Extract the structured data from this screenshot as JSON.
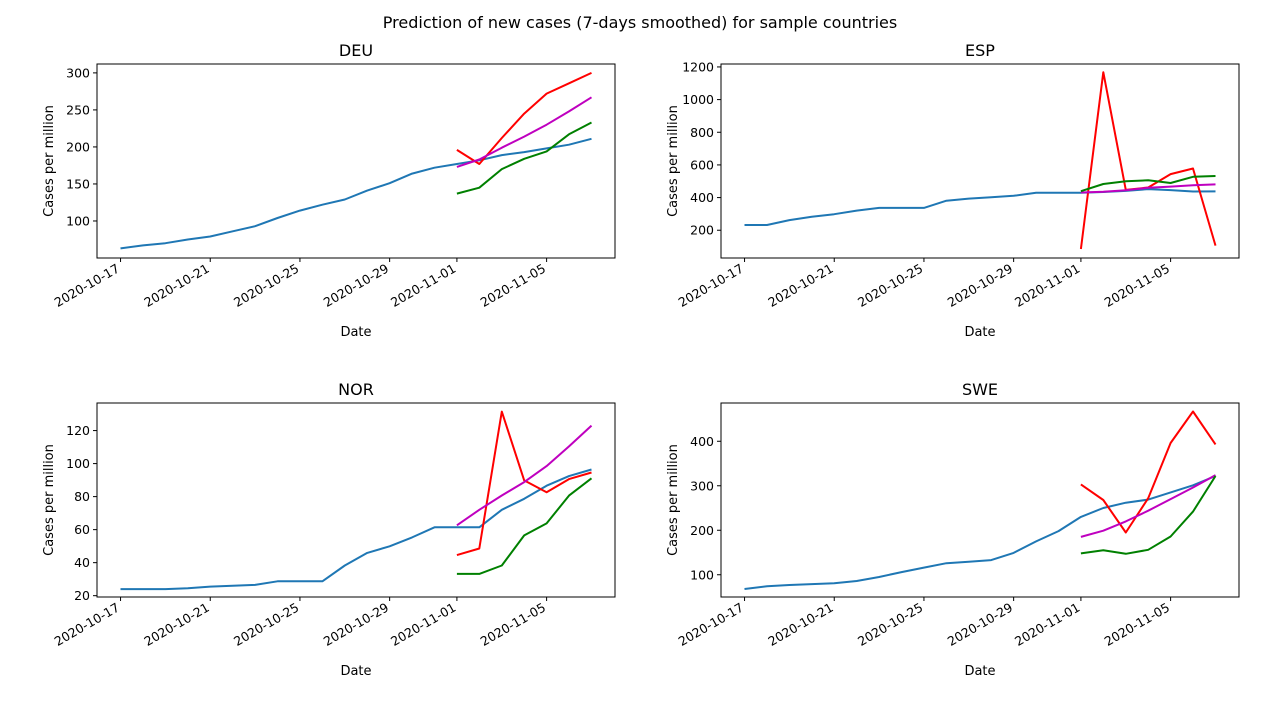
{
  "figure": {
    "suptitle": "Prediction of new cases (7-days smoothed) for sample countries"
  },
  "chart_data": [
    {
      "type": "line",
      "title": "DEU",
      "xlabel": "Date",
      "ylabel": "Cases per million",
      "xlim": [
        "2020-10-17",
        "2020-11-07"
      ],
      "ylim": [
        50,
        312
      ],
      "x_ticks": [
        "2020-10-17",
        "2020-10-21",
        "2020-10-25",
        "2020-10-29",
        "2020-11-01",
        "2020-11-05"
      ],
      "y_ticks": [
        100,
        150,
        200,
        250,
        300
      ],
      "series": [
        {
          "color": "#1f77b4",
          "x": [
            "2020-10-17",
            "2020-10-18",
            "2020-10-19",
            "2020-10-20",
            "2020-10-21",
            "2020-10-22",
            "2020-10-23",
            "2020-10-24",
            "2020-10-25",
            "2020-10-26",
            "2020-10-27",
            "2020-10-28",
            "2020-10-29",
            "2020-10-30",
            "2020-10-31",
            "2020-11-01",
            "2020-11-02",
            "2020-11-03",
            "2020-11-04",
            "2020-11-05",
            "2020-11-06",
            "2020-11-07"
          ],
          "y": [
            63,
            67,
            70,
            75,
            79,
            86,
            93,
            104,
            114,
            122,
            129,
            141,
            151,
            164,
            172,
            177,
            182,
            189,
            193,
            198,
            203,
            211
          ]
        },
        {
          "color": "#ff0000",
          "x": [
            "2020-11-01",
            "2020-11-02",
            "2020-11-03",
            "2020-11-04",
            "2020-11-05",
            "2020-11-06",
            "2020-11-07"
          ],
          "y": [
            196,
            177,
            212,
            245,
            272,
            286,
            300
          ]
        },
        {
          "color": "#bf00bf",
          "x": [
            "2020-11-01",
            "2020-11-02",
            "2020-11-03",
            "2020-11-04",
            "2020-11-05",
            "2020-11-06",
            "2020-11-07"
          ],
          "y": [
            173,
            183,
            199,
            214,
            230,
            248,
            267
          ]
        },
        {
          "color": "#008000",
          "x": [
            "2020-11-01",
            "2020-11-02",
            "2020-11-03",
            "2020-11-04",
            "2020-11-05",
            "2020-11-06",
            "2020-11-07"
          ],
          "y": [
            137,
            145,
            170,
            184,
            194,
            217,
            233
          ]
        }
      ]
    },
    {
      "type": "line",
      "title": "ESP",
      "xlabel": "Date",
      "ylabel": "Cases per million",
      "xlim": [
        "2020-10-17",
        "2020-11-07"
      ],
      "ylim": [
        30,
        1218
      ],
      "x_ticks": [
        "2020-10-17",
        "2020-10-21",
        "2020-10-25",
        "2020-10-29",
        "2020-11-01",
        "2020-11-05"
      ],
      "y_ticks": [
        200,
        400,
        600,
        800,
        1000,
        1200
      ],
      "series": [
        {
          "color": "#1f77b4",
          "x": [
            "2020-10-17",
            "2020-10-18",
            "2020-10-19",
            "2020-10-20",
            "2020-10-21",
            "2020-10-22",
            "2020-10-23",
            "2020-10-24",
            "2020-10-25",
            "2020-10-26",
            "2020-10-27",
            "2020-10-28",
            "2020-10-29",
            "2020-10-30",
            "2020-10-31",
            "2020-11-01",
            "2020-11-02",
            "2020-11-03",
            "2020-11-04",
            "2020-11-05",
            "2020-11-06",
            "2020-11-07"
          ],
          "y": [
            232,
            232,
            262,
            283,
            298,
            320,
            337,
            337,
            337,
            381,
            394,
            402,
            411,
            429,
            429,
            429,
            434,
            441,
            452,
            446,
            437,
            438
          ]
        },
        {
          "color": "#ff0000",
          "x": [
            "2020-11-01",
            "2020-11-02",
            "2020-11-03",
            "2020-11-04",
            "2020-11-05",
            "2020-11-06",
            "2020-11-07"
          ],
          "y": [
            85,
            1168,
            447,
            462,
            544,
            578,
            106
          ]
        },
        {
          "color": "#bf00bf",
          "x": [
            "2020-11-01",
            "2020-11-02",
            "2020-11-03",
            "2020-11-04",
            "2020-11-05",
            "2020-11-06",
            "2020-11-07"
          ],
          "y": [
            431,
            436,
            445,
            460,
            467,
            475,
            481
          ]
        },
        {
          "color": "#008000",
          "x": [
            "2020-11-01",
            "2020-11-02",
            "2020-11-03",
            "2020-11-04",
            "2020-11-05",
            "2020-11-06",
            "2020-11-07"
          ],
          "y": [
            439,
            483,
            500,
            506,
            489,
            527,
            532
          ]
        }
      ]
    },
    {
      "type": "line",
      "title": "NOR",
      "xlabel": "Date",
      "ylabel": "Cases per million",
      "xlim": [
        "2020-10-17",
        "2020-11-07"
      ],
      "ylim": [
        19.2,
        136.7
      ],
      "x_ticks": [
        "2020-10-17",
        "2020-10-21",
        "2020-10-25",
        "2020-10-29",
        "2020-11-01",
        "2020-11-05"
      ],
      "y_ticks": [
        20,
        40,
        60,
        80,
        100,
        120
      ],
      "series": [
        {
          "color": "#1f77b4",
          "x": [
            "2020-10-17",
            "2020-10-18",
            "2020-10-19",
            "2020-10-20",
            "2020-10-21",
            "2020-10-22",
            "2020-10-23",
            "2020-10-24",
            "2020-10-25",
            "2020-10-26",
            "2020-10-27",
            "2020-10-28",
            "2020-10-29",
            "2020-10-30",
            "2020-10-31",
            "2020-11-01",
            "2020-11-02",
            "2020-11-03",
            "2020-11-04",
            "2020-11-05",
            "2020-11-06",
            "2020-11-07"
          ],
          "y": [
            24,
            24,
            24,
            24.5,
            25.5,
            26,
            26.5,
            28.7,
            28.7,
            28.7,
            38.3,
            45.9,
            49.9,
            55.3,
            61.4,
            61.4,
            61.4,
            72,
            78.7,
            86.6,
            92.4,
            96.4
          ]
        },
        {
          "color": "#ff0000",
          "x": [
            "2020-11-01",
            "2020-11-02",
            "2020-11-03",
            "2020-11-04",
            "2020-11-05",
            "2020-11-06",
            "2020-11-07"
          ],
          "y": [
            44.6,
            48.6,
            131.5,
            89.8,
            82.7,
            90.6,
            94.6
          ]
        },
        {
          "color": "#bf00bf",
          "x": [
            "2020-11-01",
            "2020-11-02",
            "2020-11-03",
            "2020-11-04",
            "2020-11-05",
            "2020-11-06",
            "2020-11-07"
          ],
          "y": [
            62.6,
            72,
            80.7,
            88.8,
            98.5,
            110.4,
            123
          ]
        },
        {
          "color": "#008000",
          "x": [
            "2020-11-01",
            "2020-11-02",
            "2020-11-03",
            "2020-11-04",
            "2020-11-05",
            "2020-11-06",
            "2020-11-07"
          ],
          "y": [
            33.2,
            33.2,
            38.3,
            56.5,
            63.8,
            80.6,
            91.1
          ]
        }
      ]
    },
    {
      "type": "line",
      "title": "SWE",
      "xlabel": "Date",
      "ylabel": "Cases per million",
      "xlim": [
        "2020-10-17",
        "2020-11-07"
      ],
      "ylim": [
        50,
        486
      ],
      "x_ticks": [
        "2020-10-17",
        "2020-10-21",
        "2020-10-25",
        "2020-10-29",
        "2020-11-01",
        "2020-11-05"
      ],
      "y_ticks": [
        100,
        200,
        300,
        400
      ],
      "series": [
        {
          "color": "#1f77b4",
          "x": [
            "2020-10-17",
            "2020-10-18",
            "2020-10-19",
            "2020-10-20",
            "2020-10-21",
            "2020-10-22",
            "2020-10-23",
            "2020-10-24",
            "2020-10-25",
            "2020-10-26",
            "2020-10-27",
            "2020-10-28",
            "2020-10-29",
            "2020-10-30",
            "2020-10-31",
            "2020-11-01",
            "2020-11-02",
            "2020-11-03",
            "2020-11-04",
            "2020-11-05",
            "2020-11-06",
            "2020-11-07"
          ],
          "y": [
            68,
            74,
            77,
            79,
            81,
            86,
            95,
            106,
            116,
            126,
            129,
            133,
            149,
            175,
            198,
            230,
            250,
            262,
            269,
            285,
            301,
            322
          ]
        },
        {
          "color": "#ff0000",
          "x": [
            "2020-11-01",
            "2020-11-02",
            "2020-11-03",
            "2020-11-04",
            "2020-11-05",
            "2020-11-06",
            "2020-11-07"
          ],
          "y": [
            303,
            268,
            195,
            272,
            396,
            467,
            393
          ]
        },
        {
          "color": "#bf00bf",
          "x": [
            "2020-11-01",
            "2020-11-02",
            "2020-11-03",
            "2020-11-04",
            "2020-11-05",
            "2020-11-06",
            "2020-11-07"
          ],
          "y": [
            185,
            199,
            220,
            244,
            270,
            296,
            324
          ]
        },
        {
          "color": "#008000",
          "x": [
            "2020-11-01",
            "2020-11-02",
            "2020-11-03",
            "2020-11-04",
            "2020-11-05",
            "2020-11-06",
            "2020-11-07"
          ],
          "y": [
            148,
            155,
            147,
            156,
            186,
            242,
            322
          ]
        }
      ]
    }
  ]
}
